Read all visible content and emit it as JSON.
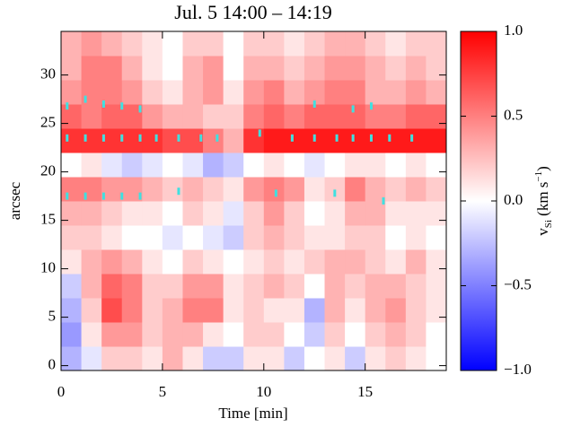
{
  "chart_data": {
    "type": "heatmap",
    "title": "Jul. 5     14:00 – 14:19",
    "x_label": "Time [min]",
    "y_label": "arcsec",
    "colorbar_label": {
      "base": "v",
      "sub": "Si",
      "main": " (km s",
      "sup": "−1",
      "end": ")"
    },
    "x": [
      0,
      1,
      2,
      3,
      4,
      5,
      6,
      7,
      8,
      9,
      10,
      11,
      12,
      13,
      14,
      15,
      16,
      17,
      18,
      19
    ],
    "y": [
      -0.5,
      2,
      4.5,
      7,
      9.5,
      12,
      14.5,
      17,
      19.5,
      22,
      24.5,
      27,
      29.5,
      32,
      34.5
    ],
    "values": [
      [
        -0.3,
        -0.1,
        0.2,
        0.2,
        0.1,
        0.3,
        0.1,
        -0.2,
        -0.2,
        0.1,
        0.1,
        -0.2,
        0.0,
        0.1,
        -0.2,
        0.1,
        0.2,
        0.1,
        0.0
      ],
      [
        -0.4,
        0.1,
        0.4,
        0.4,
        0.2,
        0.3,
        0.3,
        0.1,
        0.0,
        0.2,
        0.2,
        0.0,
        -0.2,
        0.2,
        0.0,
        0.2,
        0.3,
        0.2,
        0.0
      ],
      [
        -0.3,
        0.2,
        0.7,
        0.5,
        0.2,
        0.3,
        0.5,
        0.5,
        0.1,
        0.2,
        0.1,
        0.1,
        -0.3,
        0.3,
        0.1,
        0.3,
        0.4,
        0.2,
        0.1
      ],
      [
        -0.2,
        0.3,
        0.6,
        0.5,
        0.2,
        0.2,
        0.4,
        0.4,
        0.1,
        0.2,
        0.3,
        0.2,
        0.0,
        0.3,
        0.2,
        0.3,
        0.3,
        0.2,
        0.1
      ],
      [
        0.1,
        0.3,
        0.4,
        0.3,
        0.1,
        0.0,
        0.2,
        0.1,
        0.0,
        0.1,
        0.2,
        0.1,
        0.2,
        0.3,
        0.3,
        0.2,
        0.1,
        0.3,
        0.1
      ],
      [
        0.2,
        0.2,
        0.1,
        0.0,
        0.0,
        -0.1,
        0.0,
        -0.1,
        -0.2,
        0.2,
        0.3,
        0.2,
        0.1,
        0.1,
        0.2,
        0.2,
        0.0,
        0.1,
        0.0
      ],
      [
        0.3,
        0.3,
        0.2,
        0.1,
        0.1,
        0.0,
        0.2,
        0.1,
        -0.1,
        0.2,
        0.4,
        0.2,
        0.0,
        0.1,
        0.3,
        0.3,
        0.1,
        0.1,
        0.1
      ],
      [
        0.5,
        0.5,
        0.4,
        0.4,
        0.3,
        0.2,
        0.3,
        0.2,
        0.1,
        0.4,
        0.5,
        0.4,
        0.1,
        0.2,
        0.5,
        0.3,
        0.2,
        0.3,
        0.2
      ],
      [
        0.0,
        0.1,
        -0.1,
        -0.2,
        -0.1,
        0.0,
        -0.1,
        -0.3,
        -0.2,
        0.0,
        0.1,
        0.0,
        -0.1,
        0.0,
        0.1,
        0.1,
        0.0,
        0.1,
        0.0
      ],
      [
        0.8,
        0.8,
        0.8,
        0.8,
        0.8,
        0.7,
        0.7,
        0.5,
        0.3,
        0.8,
        0.9,
        0.9,
        0.9,
        0.9,
        0.9,
        0.9,
        0.9,
        0.9,
        0.9
      ],
      [
        0.6,
        0.5,
        0.6,
        0.6,
        0.4,
        0.3,
        0.3,
        0.2,
        0.2,
        0.5,
        0.6,
        0.5,
        0.6,
        0.6,
        0.6,
        0.5,
        0.5,
        0.6,
        0.6
      ],
      [
        0.4,
        0.5,
        0.5,
        0.4,
        0.2,
        0.1,
        0.3,
        0.4,
        0.1,
        0.4,
        0.5,
        0.3,
        0.4,
        0.5,
        0.5,
        0.3,
        0.3,
        0.4,
        0.3
      ],
      [
        0.3,
        0.5,
        0.5,
        0.3,
        0.1,
        0.0,
        0.3,
        0.4,
        0.0,
        0.3,
        0.3,
        0.2,
        0.3,
        0.4,
        0.4,
        0.3,
        0.2,
        0.3,
        0.2
      ],
      [
        0.3,
        0.4,
        0.3,
        0.2,
        0.1,
        0.0,
        0.2,
        0.2,
        0.0,
        0.2,
        0.2,
        0.1,
        0.2,
        0.3,
        0.3,
        0.2,
        0.1,
        0.2,
        0.2
      ]
    ],
    "xlim": [
      0,
      19
    ],
    "ylim": [
      -0.5,
      34.5
    ],
    "xticks": [
      0,
      5,
      10,
      15
    ],
    "yticks": [
      0,
      5,
      10,
      15,
      20,
      25,
      30
    ],
    "zlim": [
      -1,
      1
    ],
    "zticks": [
      {
        "value": -1,
        "label": "−1.0"
      },
      {
        "value": -0.5,
        "label": "−0.5"
      },
      {
        "value": 0,
        "label": "0.0"
      },
      0.5,
      {
        "value": 1,
        "label": "1.0"
      }
    ],
    "colormap": [
      "#0000ff",
      "#ffffff",
      "#ff0000"
    ],
    "markers": {
      "color": "#40e0e0",
      "x": [
        0.3,
        1.2,
        2.1,
        3.0,
        3.9,
        4.7,
        5.8,
        6.9,
        7.7,
        9.8,
        11.4,
        12.5,
        13.6,
        14.4,
        15.3,
        16.2,
        17.3,
        0.3,
        1.2,
        2.1,
        3.0,
        3.9,
        5.8,
        10.6,
        13.5,
        15.9,
        0.3,
        1.2,
        2.1,
        3.0,
        3.9,
        12.5,
        14.4,
        15.3
      ],
      "y": [
        23.5,
        23.5,
        23.5,
        23.5,
        23.5,
        23.5,
        23.5,
        23.5,
        23.5,
        24,
        23.5,
        23.5,
        23.5,
        23.5,
        23.5,
        23.5,
        23.5,
        17.5,
        17.5,
        17.5,
        17.5,
        17.5,
        18,
        17.8,
        17.8,
        17,
        26.8,
        27.5,
        27,
        26.8,
        26.5,
        27,
        26.5,
        26.8
      ]
    }
  }
}
